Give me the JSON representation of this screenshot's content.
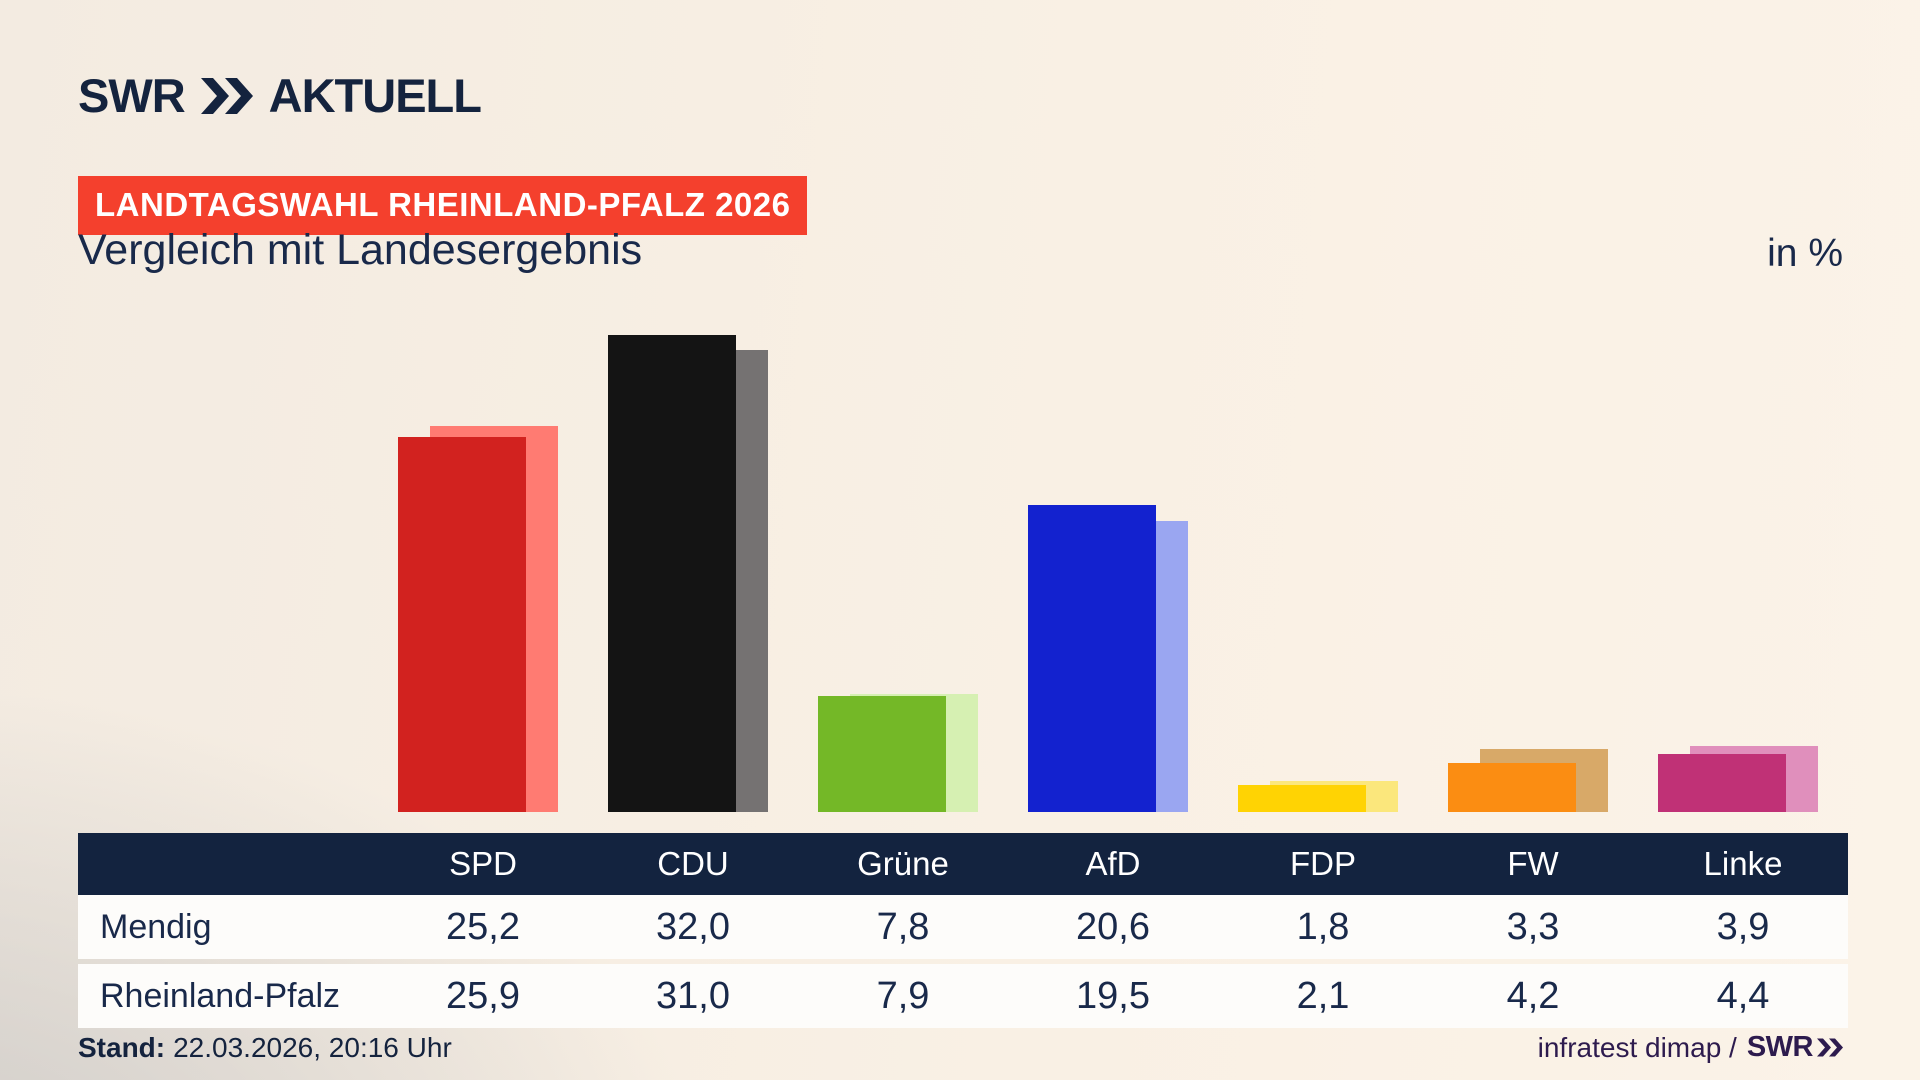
{
  "header": {
    "logo_brand": "SWR",
    "logo_suffix": "AKTUELL",
    "banner": "LANDTAGSWAHL RHEINLAND-PFALZ 2026",
    "title": "Vergleich mit Landesergebnis",
    "unit": "in %"
  },
  "chart_data": {
    "type": "bar",
    "categories": [
      "SPD",
      "CDU",
      "Grüne",
      "AfD",
      "FDP",
      "FW",
      "Linke"
    ],
    "series": [
      {
        "name": "Mendig",
        "values": [
          25.2,
          32.0,
          7.8,
          20.6,
          1.8,
          3.3,
          3.9
        ]
      },
      {
        "name": "Rheinland-Pfalz",
        "values": [
          25.9,
          31.0,
          7.9,
          19.5,
          2.1,
          4.2,
          4.4
        ]
      }
    ],
    "colors_main": [
      "#d2221f",
      "#141414",
      "#74b827",
      "#1322cf",
      "#ffd303",
      "#fb8d12",
      "#c03176"
    ],
    "colors_compare": [
      "#ff7b72",
      "#757272",
      "#d6f0b2",
      "#9aa6f1",
      "#fbe77c",
      "#d8a968",
      "#e08fbc"
    ],
    "title": "Vergleich mit Landesergebnis",
    "ylabel": "in %",
    "ylim": [
      0,
      35
    ],
    "grid": false,
    "legend_position": "table-row-labels",
    "value_format": "german-decimal-comma"
  },
  "table": {
    "columns": [
      "SPD",
      "CDU",
      "Grüne",
      "AfD",
      "FDP",
      "FW",
      "Linke"
    ],
    "rows": [
      {
        "label": "Mendig",
        "values": [
          "25,2",
          "32,0",
          "7,8",
          "20,6",
          "1,8",
          "3,3",
          "3,9"
        ]
      },
      {
        "label": "Rheinland-Pfalz",
        "values": [
          "25,9",
          "31,0",
          "7,9",
          "19,5",
          "2,1",
          "4,2",
          "4,4"
        ]
      }
    ]
  },
  "footer": {
    "stand_label": "Stand:",
    "stand_value": "22.03.2026, 20:16 Uhr",
    "source": "infratest dimap /",
    "source_brand": "SWR"
  },
  "colors": {
    "navy": "#13233f",
    "text_navy": "#19294a",
    "banner_red": "#f4402d",
    "background_cream": "#faf1e5",
    "background_gray": "#ccc9c6"
  }
}
